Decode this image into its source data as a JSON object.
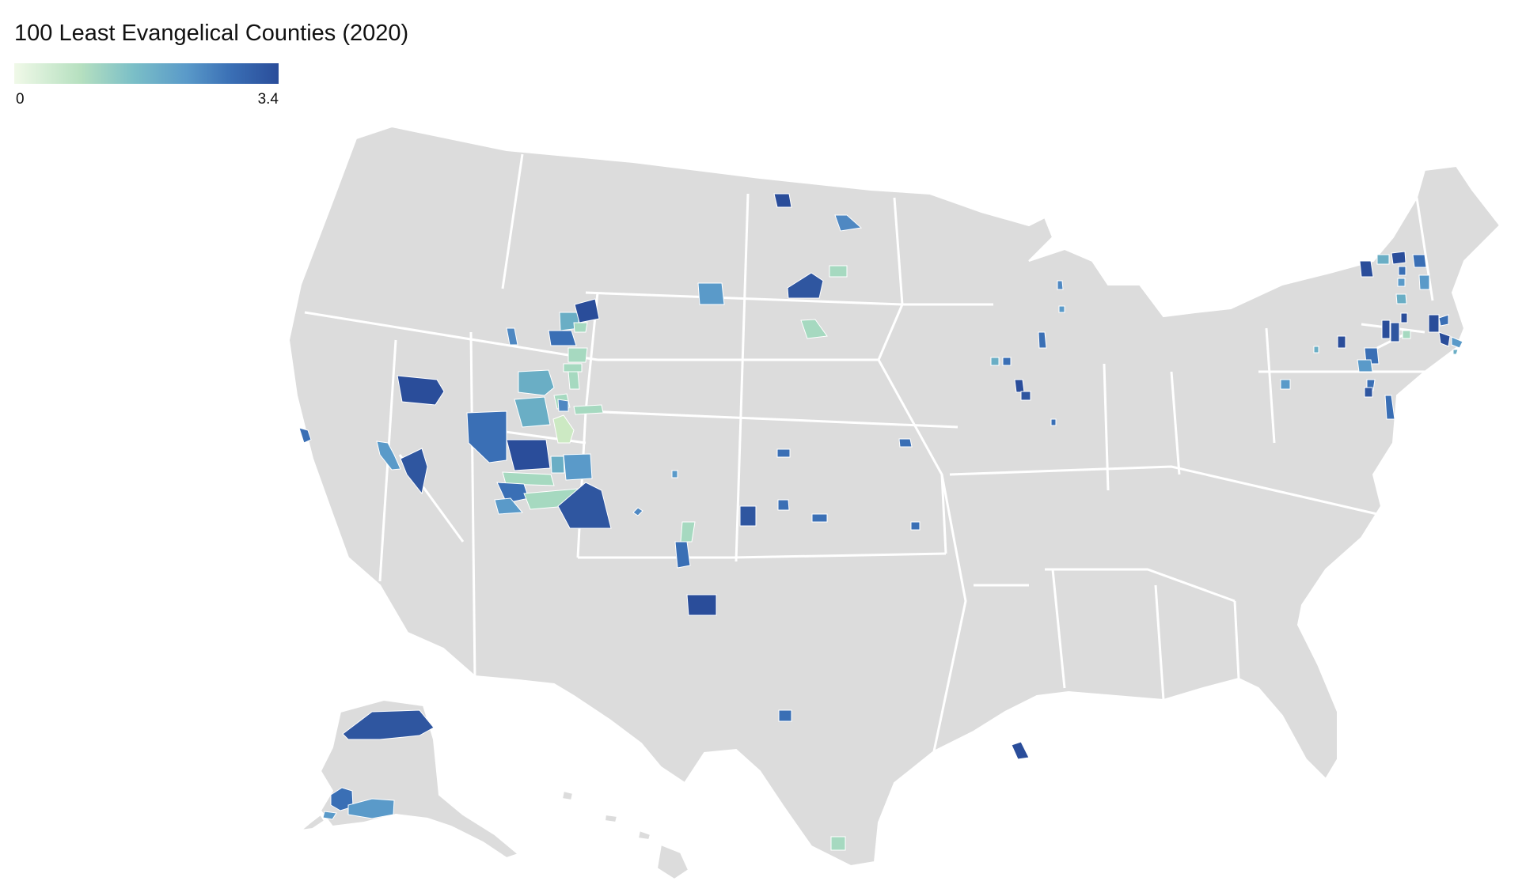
{
  "title": "100 Least Evangelical Counties (2020)",
  "legend": {
    "min_label": "0",
    "max_label": "3.4",
    "colors": [
      "#f0f9e8",
      "#bae4bc",
      "#7bbfc7",
      "#5a9ac9",
      "#3a6fb5",
      "#2a4d9a"
    ]
  },
  "colors": {
    "no_data": "#dcdcdc",
    "border": "#ffffff"
  }
}
